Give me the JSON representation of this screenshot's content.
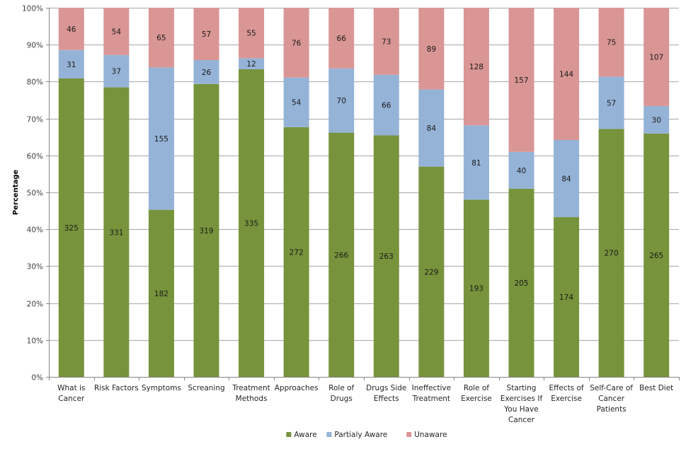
{
  "chart_data": {
    "type": "bar",
    "stacked": true,
    "normalized_percent": true,
    "title": "",
    "xlabel": "",
    "ylabel": "Percentage",
    "ylim": [
      0,
      100
    ],
    "yticks": [
      "0%",
      "10%",
      "20%",
      "30%",
      "40%",
      "50%",
      "60%",
      "70%",
      "80%",
      "90%",
      "100%"
    ],
    "grid": true,
    "legend_position": "bottom",
    "categories": [
      "What is Cancer",
      "Risk Factors",
      "Symptoms",
      "Screaning",
      "Treatment Methods",
      "Approaches",
      "Role of Drugs",
      "Drugs Side Effects",
      "Ineffective Treatment",
      "Role of Exercise",
      "Starting Exercises If You Have Cancer",
      "Effects of Exercise",
      "Self-Care of Cancer Patients",
      "Best Diet"
    ],
    "category_label_lines": [
      [
        "What is",
        "Cancer"
      ],
      [
        "Risk Factors"
      ],
      [
        "Symptoms"
      ],
      [
        "Screaning"
      ],
      [
        "Treatment",
        "Methods"
      ],
      [
        "Approaches"
      ],
      [
        "Role of",
        "Drugs"
      ],
      [
        "Drugs Side",
        "Effects"
      ],
      [
        "Ineffective",
        "Treatment"
      ],
      [
        "Role of",
        "Exercise"
      ],
      [
        "Starting",
        "Exercises If",
        "You Have",
        "Cancer"
      ],
      [
        "Effects of",
        "Exercise"
      ],
      [
        "Self-Care of",
        "Cancer",
        "Patients"
      ],
      [
        "Best Diet"
      ]
    ],
    "series": [
      {
        "name": "Aware",
        "color": "#77933c",
        "values": [
          325,
          331,
          182,
          319,
          335,
          272,
          266,
          263,
          229,
          193,
          205,
          174,
          270,
          265
        ]
      },
      {
        "name": "Partialy Aware",
        "color": "#95b3d7",
        "values": [
          31,
          37,
          155,
          26,
          12,
          54,
          70,
          66,
          84,
          81,
          40,
          84,
          57,
          30
        ]
      },
      {
        "name": "Unaware",
        "color": "#d99694",
        "values": [
          46,
          54,
          65,
          57,
          55,
          76,
          66,
          73,
          89,
          128,
          157,
          144,
          75,
          107
        ]
      }
    ]
  }
}
